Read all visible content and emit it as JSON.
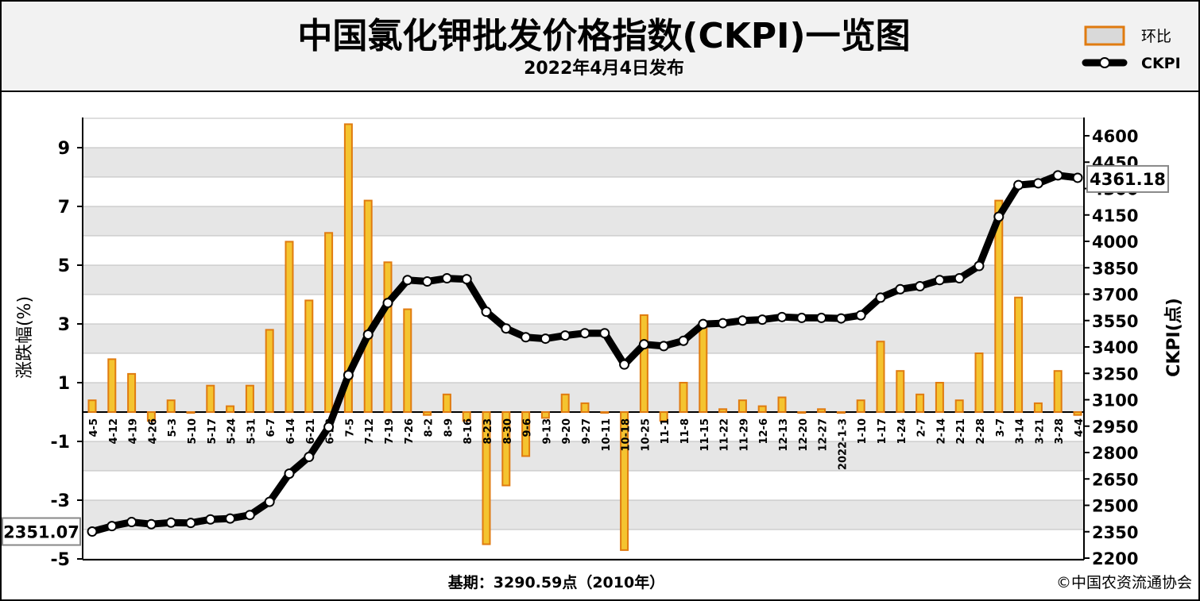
{
  "header": {
    "title": "中国氯化钾批发价格指数(CKPI)一览图",
    "subtitle": "2022年4月4日发布"
  },
  "legend": {
    "bar_label": "环比",
    "line_label": "CKPI",
    "placement": "top-right"
  },
  "footer": {
    "base_note": "基期：3290.59点（2010年）",
    "copyright": "©中国农资流通协会"
  },
  "colors": {
    "bar_fill": "#f4c430",
    "bar_stroke": "#e07b10",
    "line": "#000000",
    "grid_band": "#e6e6e6"
  },
  "chart_data": {
    "type": "bar+line",
    "title": "中国氯化钾批发价格指数(CKPI)一览图",
    "subtitle": "2022年4月4日发布",
    "y_left_label": "涨跌幅(%)",
    "y_right_label": "CKPI(点)",
    "y_left_range": [
      -5,
      10
    ],
    "y_left_ticks": [
      9,
      7,
      5,
      3,
      1,
      -1,
      -3,
      -5
    ],
    "y_right_range": [
      2200,
      4750
    ],
    "y_right_ticks": [
      4600,
      4450,
      4300,
      4150,
      4000,
      3850,
      3700,
      3550,
      3400,
      3250,
      3100,
      2950,
      2800,
      2650,
      2500,
      2350,
      2200
    ],
    "grid": true,
    "categories": [
      "4-5",
      "4-12",
      "4-19",
      "4-26",
      "5-3",
      "5-10",
      "5-17",
      "5-24",
      "5-31",
      "6-7",
      "6-14",
      "6-21",
      "6-28",
      "7-5",
      "7-12",
      "7-19",
      "7-26",
      "8-2",
      "8-9",
      "8-16",
      "8-23",
      "8-30",
      "9-6",
      "9-13",
      "9-20",
      "9-27",
      "10-11",
      "10-18",
      "10-25",
      "11-1",
      "11-8",
      "11-15",
      "11-22",
      "11-29",
      "12-6",
      "12-13",
      "12-20",
      "12-27",
      "2022-1-3",
      "1-10",
      "1-17",
      "1-24",
      "2-7",
      "2-14",
      "2-21",
      "2-28",
      "3-7",
      "3-14",
      "3-21",
      "3-28",
      "4-4"
    ],
    "series": [
      {
        "name": "环比",
        "type": "bar",
        "axis": "left",
        "values": [
          0.4,
          1.8,
          1.3,
          -0.3,
          0.4,
          0.0,
          0.9,
          0.2,
          0.9,
          2.8,
          5.8,
          3.8,
          6.1,
          9.8,
          7.2,
          5.1,
          3.5,
          -0.1,
          0.6,
          -0.3,
          -4.5,
          -2.5,
          -1.5,
          -0.2,
          0.6,
          0.3,
          0.0,
          -4.7,
          3.3,
          -0.3,
          1.0,
          2.9,
          0.1,
          0.4,
          0.2,
          0.5,
          0.0,
          0.1,
          0.0,
          0.4,
          2.4,
          1.4,
          0.6,
          1.0,
          0.4,
          2.0,
          7.2,
          3.9,
          0.3,
          1.4,
          -0.1
        ]
      },
      {
        "name": "CKPI",
        "type": "line",
        "axis": "right",
        "values": [
          2351.07,
          2382,
          2405,
          2393,
          2402,
          2400,
          2420,
          2425,
          2445,
          2520,
          2680,
          2775,
          2945,
          3240,
          3470,
          3650,
          3780,
          3772,
          3790,
          3785,
          3600,
          3505,
          3455,
          3447,
          3465,
          3478,
          3478,
          3300,
          3415,
          3405,
          3435,
          3530,
          3535,
          3550,
          3555,
          3570,
          3565,
          3565,
          3562,
          3580,
          3680,
          3728,
          3745,
          3780,
          3790,
          3860,
          4140,
          4320,
          4330,
          4375,
          4361.18
        ]
      }
    ],
    "annotations": {
      "first_value_label": "2351.07",
      "last_value_label": "4361.18"
    }
  }
}
